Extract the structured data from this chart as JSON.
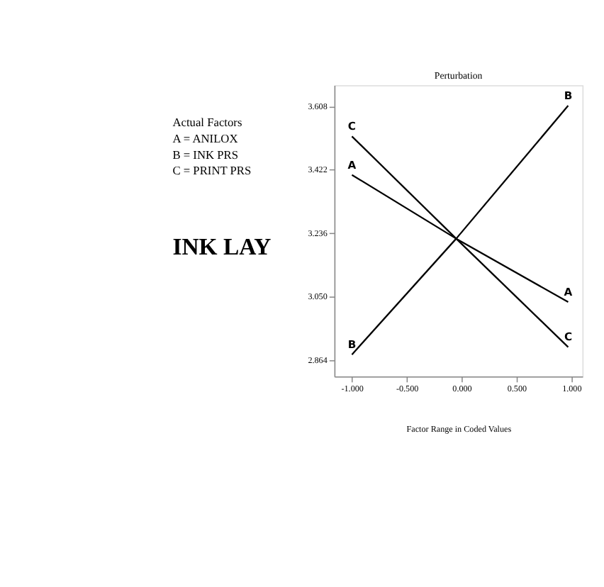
{
  "chart_data": {
    "type": "line",
    "title": "Perturbation",
    "xlabel": "Factor Range in Coded Values",
    "ylabel": "INK LAY",
    "annotations": [
      "Actual Factors",
      "A = ANILOX",
      "B = INK PRS",
      "C = PRINT PRS"
    ],
    "x": [
      -1.0,
      -0.05,
      0.97
    ],
    "series": [
      {
        "name": "A",
        "color": "#000000",
        "values": [
          3.407,
          3.22,
          3.034
        ]
      },
      {
        "name": "B",
        "color": "#000000",
        "values": [
          2.88,
          3.22,
          3.61
        ]
      },
      {
        "name": "C",
        "color": "#000000",
        "values": [
          3.52,
          3.22,
          2.902
        ]
      }
    ],
    "xlim": [
      -1.16,
      1.1
    ],
    "ylim": [
      2.816,
      3.67
    ],
    "xticks": [
      {
        "value": -1,
        "label": "-1.000"
      },
      {
        "value": -0.5,
        "label": "-0.500"
      },
      {
        "value": 0,
        "label": "0.000"
      },
      {
        "value": 0.5,
        "label": "0.500"
      },
      {
        "value": 1,
        "label": "1.000"
      }
    ],
    "yticks": [
      2.864,
      {
        "value": 3.05,
        "label": "3.050"
      },
      3.236,
      3.422,
      3.608
    ],
    "grid": false,
    "legend": false,
    "marker": "none",
    "line_style": "solid"
  }
}
